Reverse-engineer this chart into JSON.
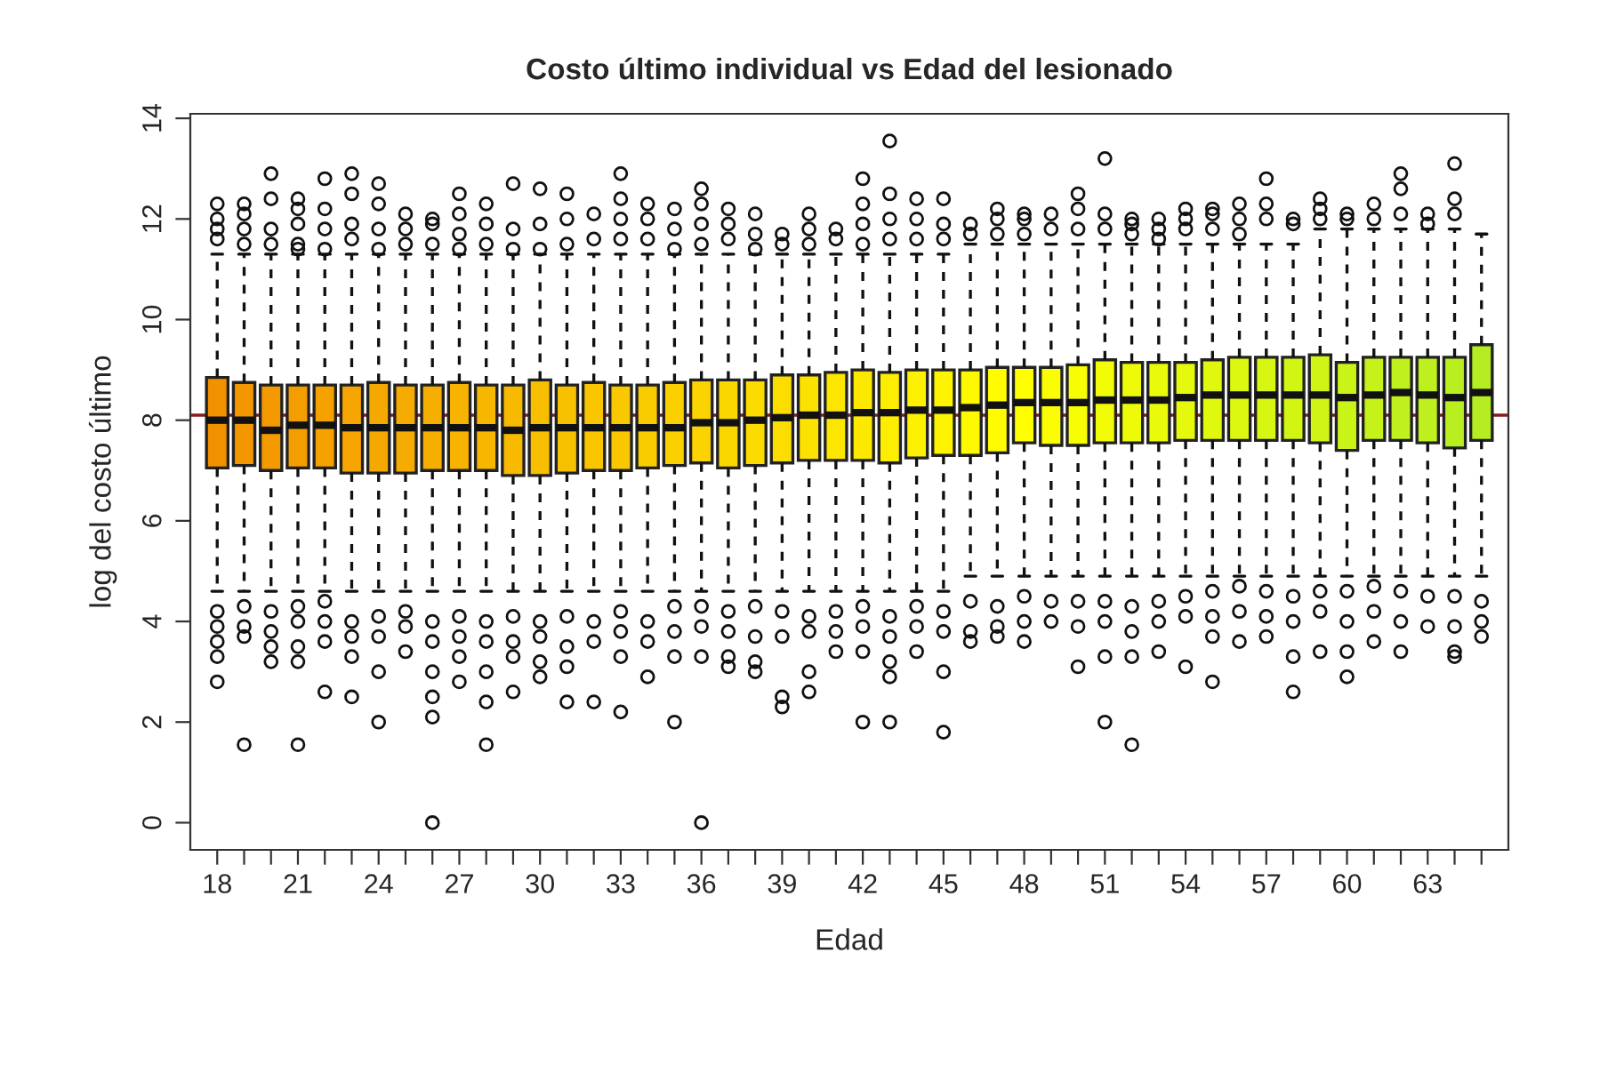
{
  "chart_data": {
    "type": "box",
    "title": "Costo último individual vs Edad del lesionado",
    "xlabel": "Edad",
    "ylabel": "log del costo último",
    "categories": [
      "18",
      null,
      null,
      "21",
      null,
      null,
      "24",
      null,
      null,
      "27",
      null,
      null,
      "30",
      null,
      null,
      "33",
      null,
      null,
      "36",
      null,
      null,
      "39",
      null,
      null,
      "42",
      null,
      null,
      "45",
      null,
      null,
      "48",
      null,
      null,
      "51",
      null,
      null,
      "54",
      null,
      null,
      "57",
      null,
      null,
      "60",
      null,
      null,
      "63",
      null,
      null
    ],
    "colors": [
      "#f39200",
      "#f39600",
      "#f49900",
      "#f49d00",
      "#f5a100",
      "#f5a400",
      "#f5a800",
      "#f6ab00",
      "#f6af00",
      "#f7b300",
      "#f7b600",
      "#f7ba00",
      "#f8be00",
      "#f8c100",
      "#f9c500",
      "#f9c800",
      "#f9cc00",
      "#fad000",
      "#fad300",
      "#fbd700",
      "#fbdb00",
      "#fbde00",
      "#fce200",
      "#fce600",
      "#fde900",
      "#fded00",
      "#fdf000",
      "#fef400",
      "#fef800",
      "#fffb00",
      "#ffff00",
      "#fbfe02",
      "#f6fd04",
      "#f2fc06",
      "#eefb08",
      "#e9fa0a",
      "#e5f90c",
      "#e0f80e",
      "#dcf710",
      "#d7f612",
      "#d3f514",
      "#cff416",
      "#caf318",
      "#c6f21a",
      "#c1f11c",
      "#bdf01e",
      "#b9ef20",
      "#b4ee22"
    ],
    "ylim": [
      -0.54,
      14.09
    ],
    "yticks": [
      0,
      2,
      4,
      6,
      8,
      10,
      12,
      14
    ],
    "ref_lines": [
      {
        "axis": "y",
        "value": 8.1,
        "color": "#8b1a1a"
      }
    ],
    "boxes": [
      {
        "low": 4.6,
        "q1": 7.05,
        "median": 8.0,
        "q3": 8.85,
        "high": 11.3,
        "outliers": [
          11.6,
          11.8,
          12.0,
          12.3,
          4.2,
          3.9,
          3.6,
          3.3,
          2.8
        ]
      },
      {
        "low": 4.6,
        "q1": 7.1,
        "median": 8.0,
        "q3": 8.75,
        "high": 11.3,
        "outliers": [
          11.5,
          11.8,
          12.1,
          12.3,
          4.3,
          3.9,
          3.7,
          1.55
        ]
      },
      {
        "low": 4.6,
        "q1": 7.0,
        "median": 7.8,
        "q3": 8.7,
        "high": 11.3,
        "outliers": [
          11.5,
          11.8,
          12.4,
          12.9,
          4.2,
          3.8,
          3.5,
          3.2
        ]
      },
      {
        "low": 4.6,
        "q1": 7.05,
        "median": 7.9,
        "q3": 8.7,
        "high": 11.3,
        "outliers": [
          11.4,
          11.5,
          11.9,
          12.2,
          12.4,
          4.3,
          4.0,
          3.5,
          3.2,
          1.55
        ]
      },
      {
        "low": 4.6,
        "q1": 7.05,
        "median": 7.9,
        "q3": 8.7,
        "high": 11.3,
        "outliers": [
          11.4,
          11.8,
          12.2,
          12.8,
          4.4,
          4.0,
          3.6,
          2.6
        ]
      },
      {
        "low": 4.6,
        "q1": 6.95,
        "median": 7.85,
        "q3": 8.7,
        "high": 11.3,
        "outliers": [
          11.6,
          11.9,
          12.5,
          12.9,
          4.0,
          3.7,
          3.3,
          2.5
        ]
      },
      {
        "low": 4.6,
        "q1": 6.95,
        "median": 7.85,
        "q3": 8.75,
        "high": 11.3,
        "outliers": [
          11.4,
          11.8,
          12.3,
          12.7,
          4.1,
          3.7,
          3.0,
          2.0
        ]
      },
      {
        "low": 4.6,
        "q1": 6.95,
        "median": 7.85,
        "q3": 8.7,
        "high": 11.3,
        "outliers": [
          11.5,
          11.8,
          12.1,
          4.2,
          3.9,
          3.4
        ]
      },
      {
        "low": 4.6,
        "q1": 7.0,
        "median": 7.85,
        "q3": 8.7,
        "high": 11.3,
        "outliers": [
          11.5,
          11.9,
          12.0,
          4.0,
          3.6,
          3.0,
          2.5,
          2.1,
          0.0
        ]
      },
      {
        "low": 4.6,
        "q1": 7.0,
        "median": 7.85,
        "q3": 8.75,
        "high": 11.3,
        "outliers": [
          11.4,
          11.7,
          12.1,
          12.5,
          4.1,
          3.7,
          3.3,
          2.8
        ]
      },
      {
        "low": 4.6,
        "q1": 7.0,
        "median": 7.85,
        "q3": 8.7,
        "high": 11.3,
        "outliers": [
          11.5,
          11.9,
          12.3,
          4.0,
          3.6,
          3.0,
          2.4,
          1.55
        ]
      },
      {
        "low": 4.6,
        "q1": 6.9,
        "median": 7.8,
        "q3": 8.7,
        "high": 11.3,
        "outliers": [
          11.4,
          11.8,
          12.7,
          4.1,
          3.6,
          3.3,
          2.6
        ]
      },
      {
        "low": 4.6,
        "q1": 6.9,
        "median": 7.85,
        "q3": 8.8,
        "high": 11.3,
        "outliers": [
          11.4,
          11.9,
          12.6,
          4.0,
          3.7,
          3.2,
          2.9
        ]
      },
      {
        "low": 4.6,
        "q1": 6.95,
        "median": 7.85,
        "q3": 8.7,
        "high": 11.3,
        "outliers": [
          11.5,
          12.0,
          12.5,
          4.1,
          3.5,
          3.1,
          2.4
        ]
      },
      {
        "low": 4.6,
        "q1": 7.0,
        "median": 7.85,
        "q3": 8.75,
        "high": 11.3,
        "outliers": [
          11.6,
          12.1,
          4.0,
          3.6,
          2.4
        ]
      },
      {
        "low": 4.6,
        "q1": 7.0,
        "median": 7.85,
        "q3": 8.7,
        "high": 11.3,
        "outliers": [
          11.6,
          12.0,
          12.4,
          12.9,
          4.2,
          3.8,
          3.3,
          2.2
        ]
      },
      {
        "low": 4.6,
        "q1": 7.05,
        "median": 7.85,
        "q3": 8.7,
        "high": 11.3,
        "outliers": [
          11.6,
          12.0,
          12.3,
          4.0,
          3.6,
          2.9
        ]
      },
      {
        "low": 4.6,
        "q1": 7.1,
        "median": 7.85,
        "q3": 8.75,
        "high": 11.3,
        "outliers": [
          11.4,
          11.8,
          12.2,
          4.3,
          3.8,
          3.3,
          2.0
        ]
      },
      {
        "low": 4.6,
        "q1": 7.15,
        "median": 7.95,
        "q3": 8.8,
        "high": 11.3,
        "outliers": [
          11.5,
          11.9,
          12.3,
          12.6,
          4.3,
          3.9,
          3.3,
          0.0
        ]
      },
      {
        "low": 4.6,
        "q1": 7.05,
        "median": 7.95,
        "q3": 8.8,
        "high": 11.3,
        "outliers": [
          11.6,
          11.9,
          12.2,
          4.2,
          3.8,
          3.3,
          3.1
        ]
      },
      {
        "low": 4.6,
        "q1": 7.1,
        "median": 8.0,
        "q3": 8.8,
        "high": 11.3,
        "outliers": [
          11.4,
          11.7,
          12.1,
          4.3,
          3.7,
          3.2,
          3.0
        ]
      },
      {
        "low": 4.6,
        "q1": 7.15,
        "median": 8.05,
        "q3": 8.9,
        "high": 11.3,
        "outliers": [
          11.5,
          11.7,
          4.2,
          3.7,
          2.5,
          2.3
        ]
      },
      {
        "low": 4.6,
        "q1": 7.2,
        "median": 8.1,
        "q3": 8.9,
        "high": 11.3,
        "outliers": [
          11.5,
          11.8,
          12.1,
          4.1,
          3.8,
          3.0,
          2.6
        ]
      },
      {
        "low": 4.6,
        "q1": 7.2,
        "median": 8.1,
        "q3": 8.95,
        "high": 11.3,
        "outliers": [
          11.6,
          11.8,
          4.2,
          3.8,
          3.4
        ]
      },
      {
        "low": 4.6,
        "q1": 7.2,
        "median": 8.15,
        "q3": 9.0,
        "high": 11.3,
        "outliers": [
          11.5,
          11.9,
          12.3,
          12.8,
          4.3,
          3.9,
          3.4,
          2.0
        ]
      },
      {
        "low": 4.6,
        "q1": 7.15,
        "median": 8.15,
        "q3": 8.95,
        "high": 11.3,
        "outliers": [
          11.6,
          12.0,
          12.5,
          13.55,
          4.1,
          3.7,
          3.2,
          2.9,
          2.0
        ]
      },
      {
        "low": 4.6,
        "q1": 7.25,
        "median": 8.2,
        "q3": 9.0,
        "high": 11.3,
        "outliers": [
          11.6,
          12.0,
          12.4,
          4.3,
          3.9,
          3.4
        ]
      },
      {
        "low": 4.6,
        "q1": 7.3,
        "median": 8.2,
        "q3": 9.0,
        "high": 11.3,
        "outliers": [
          11.6,
          11.9,
          12.4,
          4.2,
          3.8,
          3.0,
          1.8
        ]
      },
      {
        "low": 4.9,
        "q1": 7.3,
        "median": 8.25,
        "q3": 9.0,
        "high": 11.5,
        "outliers": [
          11.7,
          11.9,
          4.4,
          3.8,
          3.6
        ]
      },
      {
        "low": 4.9,
        "q1": 7.35,
        "median": 8.3,
        "q3": 9.05,
        "high": 11.5,
        "outliers": [
          11.7,
          12.0,
          12.2,
          4.3,
          3.9,
          3.7
        ]
      },
      {
        "low": 4.9,
        "q1": 7.55,
        "median": 8.35,
        "q3": 9.05,
        "high": 11.5,
        "outliers": [
          11.7,
          12.0,
          12.1,
          4.5,
          4.0,
          3.6
        ]
      },
      {
        "low": 4.9,
        "q1": 7.5,
        "median": 8.35,
        "q3": 9.05,
        "high": 11.5,
        "outliers": [
          11.8,
          12.1,
          4.4,
          4.0
        ]
      },
      {
        "low": 4.9,
        "q1": 7.5,
        "median": 8.35,
        "q3": 9.1,
        "high": 11.5,
        "outliers": [
          11.8,
          12.2,
          12.5,
          4.4,
          3.9,
          3.1
        ]
      },
      {
        "low": 4.9,
        "q1": 7.55,
        "median": 8.4,
        "q3": 9.2,
        "high": 11.5,
        "outliers": [
          11.8,
          12.1,
          13.2,
          4.4,
          4.0,
          3.3,
          2.0
        ]
      },
      {
        "low": 4.9,
        "q1": 7.55,
        "median": 8.4,
        "q3": 9.15,
        "high": 11.5,
        "outliers": [
          11.7,
          11.9,
          12.0,
          4.3,
          3.8,
          3.3,
          1.55
        ]
      },
      {
        "low": 4.9,
        "q1": 7.55,
        "median": 8.4,
        "q3": 9.15,
        "high": 11.5,
        "outliers": [
          11.6,
          11.8,
          12.0,
          4.4,
          4.0,
          3.4
        ]
      },
      {
        "low": 4.9,
        "q1": 7.6,
        "median": 8.45,
        "q3": 9.15,
        "high": 11.5,
        "outliers": [
          11.8,
          12.0,
          12.2,
          4.5,
          4.1,
          3.1
        ]
      },
      {
        "low": 4.9,
        "q1": 7.6,
        "median": 8.5,
        "q3": 9.2,
        "high": 11.5,
        "outliers": [
          11.8,
          12.1,
          12.2,
          4.6,
          4.1,
          3.7,
          2.8
        ]
      },
      {
        "low": 4.9,
        "q1": 7.6,
        "median": 8.5,
        "q3": 9.25,
        "high": 11.5,
        "outliers": [
          11.7,
          12.0,
          12.3,
          4.7,
          4.2,
          3.6
        ]
      },
      {
        "low": 4.9,
        "q1": 7.6,
        "median": 8.5,
        "q3": 9.25,
        "high": 11.5,
        "outliers": [
          12.0,
          12.3,
          12.8,
          4.6,
          4.1,
          3.7
        ]
      },
      {
        "low": 4.9,
        "q1": 7.6,
        "median": 8.5,
        "q3": 9.25,
        "high": 11.5,
        "outliers": [
          11.9,
          12.0,
          4.5,
          4.0,
          3.3,
          2.6
        ]
      },
      {
        "low": 4.9,
        "q1": 7.55,
        "median": 8.5,
        "q3": 9.3,
        "high": 11.8,
        "outliers": [
          12.0,
          12.2,
          12.4,
          4.6,
          4.2,
          3.4
        ]
      },
      {
        "low": 4.9,
        "q1": 7.4,
        "median": 8.45,
        "q3": 9.15,
        "high": 11.8,
        "outliers": [
          12.0,
          12.1,
          4.6,
          4.0,
          3.4,
          2.9
        ]
      },
      {
        "low": 4.9,
        "q1": 7.6,
        "median": 8.5,
        "q3": 9.25,
        "high": 11.8,
        "outliers": [
          12.0,
          12.3,
          4.7,
          4.2,
          3.6
        ]
      },
      {
        "low": 4.9,
        "q1": 7.6,
        "median": 8.55,
        "q3": 9.25,
        "high": 11.8,
        "outliers": [
          12.1,
          12.6,
          12.9,
          4.6,
          4.0,
          3.4
        ]
      },
      {
        "low": 4.9,
        "q1": 7.55,
        "median": 8.5,
        "q3": 9.25,
        "high": 11.8,
        "outliers": [
          11.9,
          12.1,
          4.5,
          3.9
        ]
      },
      {
        "low": 4.9,
        "q1": 7.45,
        "median": 8.45,
        "q3": 9.25,
        "high": 11.8,
        "outliers": [
          12.1,
          12.4,
          13.1,
          4.5,
          3.9,
          3.4,
          3.3
        ]
      },
      {
        "low": 4.9,
        "q1": 7.6,
        "median": 8.55,
        "q3": 9.5,
        "high": 11.7,
        "outliers": [
          4.4,
          4.0,
          3.7
        ]
      }
    ]
  }
}
